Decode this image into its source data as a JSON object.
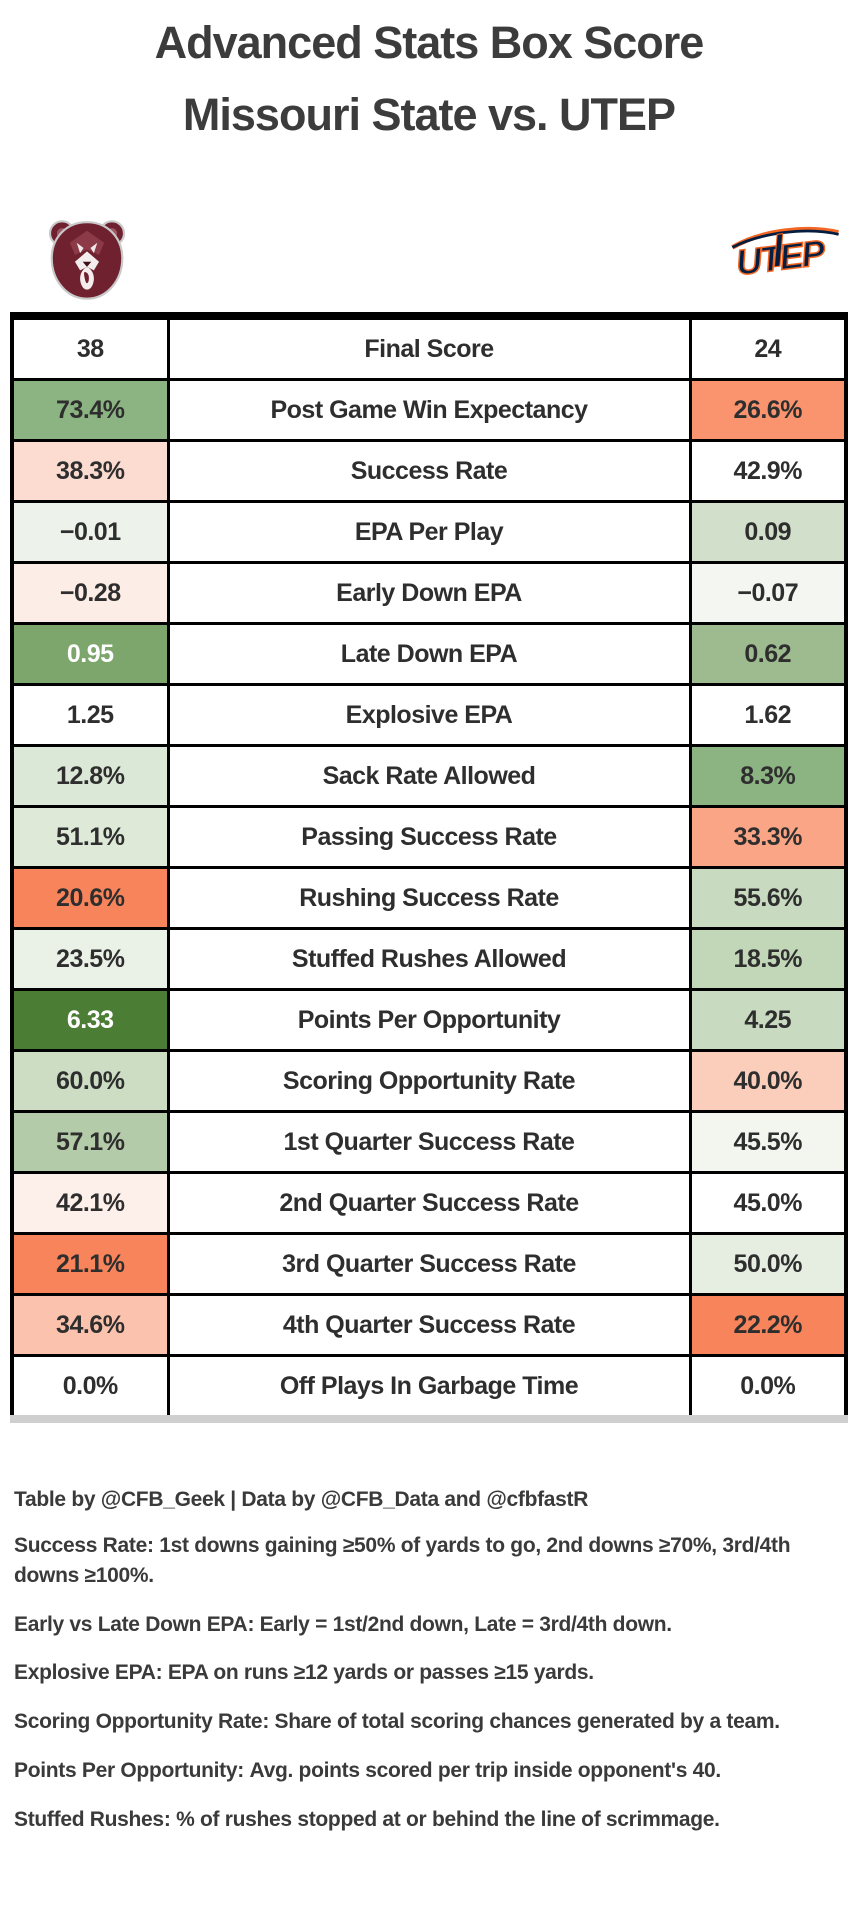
{
  "title": {
    "line1": "Advanced Stats Box Score",
    "line2": "Missouri State vs. UTEP"
  },
  "teams": {
    "home": {
      "name": "Missouri State",
      "logo_icon": "missouri-state-bear-logo",
      "primary_color": "#70212f"
    },
    "away": {
      "name": "UTEP",
      "logo_icon": "utep-miners-logo",
      "primary_color": "#041e42",
      "secondary_color": "#f26522"
    }
  },
  "table": {
    "rows": [
      {
        "stat": "Final Score",
        "home": {
          "value": "38",
          "bg": "#ffffff",
          "fg": "#2e2e2e"
        },
        "away": {
          "value": "24",
          "bg": "#ffffff",
          "fg": "#2e2e2e"
        }
      },
      {
        "stat": "Post Game Win Expectancy",
        "home": {
          "value": "73.4%",
          "bg": "#8cb482",
          "fg": "#2e2e2e"
        },
        "away": {
          "value": "26.6%",
          "bg": "#f9946e",
          "fg": "#2e2e2e"
        }
      },
      {
        "stat": "Success Rate",
        "home": {
          "value": "38.3%",
          "bg": "#fcdbd1",
          "fg": "#2e2e2e"
        },
        "away": {
          "value": "42.9%",
          "bg": "#ffffff",
          "fg": "#2e2e2e"
        }
      },
      {
        "stat": "EPA Per Play",
        "home": {
          "value": "−0.01",
          "bg": "#edf3eb",
          "fg": "#2e2e2e"
        },
        "away": {
          "value": "0.09",
          "bg": "#d2dfca",
          "fg": "#2e2e2e"
        }
      },
      {
        "stat": "Early Down EPA",
        "home": {
          "value": "−0.28",
          "bg": "#fdede7",
          "fg": "#2e2e2e"
        },
        "away": {
          "value": "−0.07",
          "bg": "#f3f6f1",
          "fg": "#2e2e2e"
        }
      },
      {
        "stat": "Late Down EPA",
        "home": {
          "value": "0.95",
          "bg": "#7ca66b",
          "fg": "#ffffff"
        },
        "away": {
          "value": "0.62",
          "bg": "#9dbb8f",
          "fg": "#2e2e2e"
        }
      },
      {
        "stat": "Explosive EPA",
        "home": {
          "value": "1.25",
          "bg": "#ffffff",
          "fg": "#2e2e2e"
        },
        "away": {
          "value": "1.62",
          "bg": "#ffffff",
          "fg": "#2e2e2e"
        }
      },
      {
        "stat": "Sack Rate Allowed",
        "home": {
          "value": "12.8%",
          "bg": "#dce8d7",
          "fg": "#2e2e2e"
        },
        "away": {
          "value": "8.3%",
          "bg": "#8cb482",
          "fg": "#2e2e2e"
        }
      },
      {
        "stat": "Passing Success Rate",
        "home": {
          "value": "51.1%",
          "bg": "#dee9d8",
          "fg": "#2e2e2e"
        },
        "away": {
          "value": "33.3%",
          "bg": "#faa585",
          "fg": "#2e2e2e"
        }
      },
      {
        "stat": "Rushing Success Rate",
        "home": {
          "value": "20.6%",
          "bg": "#f8845b",
          "fg": "#2e2e2e"
        },
        "away": {
          "value": "55.6%",
          "bg": "#c8dabf",
          "fg": "#2e2e2e"
        }
      },
      {
        "stat": "Stuffed Rushes Allowed",
        "home": {
          "value": "23.5%",
          "bg": "#eaf1e6",
          "fg": "#2e2e2e"
        },
        "away": {
          "value": "18.5%",
          "bg": "#c2d6b8",
          "fg": "#2e2e2e"
        }
      },
      {
        "stat": "Points Per Opportunity",
        "home": {
          "value": "6.33",
          "bg": "#4b7d35",
          "fg": "#ffffff"
        },
        "away": {
          "value": "4.25",
          "bg": "#c8dabf",
          "fg": "#2e2e2e"
        }
      },
      {
        "stat": "Scoring Opportunity Rate",
        "home": {
          "value": "60.0%",
          "bg": "#ccddc4",
          "fg": "#2e2e2e"
        },
        "away": {
          "value": "40.0%",
          "bg": "#fbcebc",
          "fg": "#2e2e2e"
        }
      },
      {
        "stat": "1st Quarter Success Rate",
        "home": {
          "value": "57.1%",
          "bg": "#b4cba9",
          "fg": "#2e2e2e"
        },
        "away": {
          "value": "45.5%",
          "bg": "#f2f6ef",
          "fg": "#2e2e2e"
        }
      },
      {
        "stat": "2nd Quarter Success Rate",
        "home": {
          "value": "42.1%",
          "bg": "#fdf0ea",
          "fg": "#2e2e2e"
        },
        "away": {
          "value": "45.0%",
          "bg": "#ffffff",
          "fg": "#2e2e2e"
        }
      },
      {
        "stat": "3rd Quarter Success Rate",
        "home": {
          "value": "21.1%",
          "bg": "#f8845b",
          "fg": "#2e2e2e"
        },
        "away": {
          "value": "50.0%",
          "bg": "#e5eee1",
          "fg": "#2e2e2e"
        }
      },
      {
        "stat": "4th Quarter Success Rate",
        "home": {
          "value": "34.6%",
          "bg": "#fbc3ad",
          "fg": "#2e2e2e"
        },
        "away": {
          "value": "22.2%",
          "bg": "#f8845b",
          "fg": "#2e2e2e"
        }
      },
      {
        "stat": "Off Plays In Garbage Time",
        "home": {
          "value": "0.0%",
          "bg": "#ffffff",
          "fg": "#2e2e2e"
        },
        "away": {
          "value": "0.0%",
          "bg": "#ffffff",
          "fg": "#2e2e2e"
        }
      }
    ]
  },
  "footer": {
    "credit": "Table by @CFB_Geek | Data by @CFB_Data and @cfbfastR",
    "notes": [
      {
        "term": "Success Rate",
        "definition": "1st downs gaining ≥50% of yards to go, 2nd downs ≥70%, 3rd/4th downs ≥100%."
      },
      {
        "term": "Early vs Late Down EPA",
        "definition": "Early = 1st/2nd down, Late = 3rd/4th down."
      },
      {
        "term": "Explosive EPA",
        "definition": "EPA on runs ≥12 yards or passes ≥15 yards."
      },
      {
        "term": "Scoring Opportunity Rate",
        "definition": "Share of total scoring chances generated by a team."
      },
      {
        "term": "Points Per Opportunity",
        "definition": "Avg. points scored per trip inside opponent's 40."
      },
      {
        "term": "Stuffed Rushes",
        "definition": "% of rushes stopped at or behind the line of scrimmage."
      }
    ]
  },
  "chart_data": {
    "type": "table",
    "title": "Advanced Stats Box Score — Missouri State vs. UTEP",
    "categories": [
      "Final Score",
      "Post Game Win Expectancy",
      "Success Rate",
      "EPA Per Play",
      "Early Down EPA",
      "Late Down EPA",
      "Explosive EPA",
      "Sack Rate Allowed",
      "Passing Success Rate",
      "Rushing Success Rate",
      "Stuffed Rushes Allowed",
      "Points Per Opportunity",
      "Scoring Opportunity Rate",
      "1st Quarter Success Rate",
      "2nd Quarter Success Rate",
      "3rd Quarter Success Rate",
      "4th Quarter Success Rate",
      "Off Plays In Garbage Time"
    ],
    "series": [
      {
        "name": "Missouri State",
        "values": [
          38,
          73.4,
          38.3,
          -0.01,
          -0.28,
          0.95,
          1.25,
          12.8,
          51.1,
          20.6,
          23.5,
          6.33,
          60.0,
          57.1,
          42.1,
          21.1,
          34.6,
          0.0
        ]
      },
      {
        "name": "UTEP",
        "values": [
          24,
          26.6,
          42.9,
          0.09,
          -0.07,
          0.62,
          1.62,
          8.3,
          33.3,
          55.6,
          18.5,
          4.25,
          40.0,
          45.5,
          45.0,
          50.0,
          22.2,
          0.0
        ]
      }
    ],
    "layout": "home team values in left column, stat names center, away team values right; cell shading green = good, red = bad"
  }
}
